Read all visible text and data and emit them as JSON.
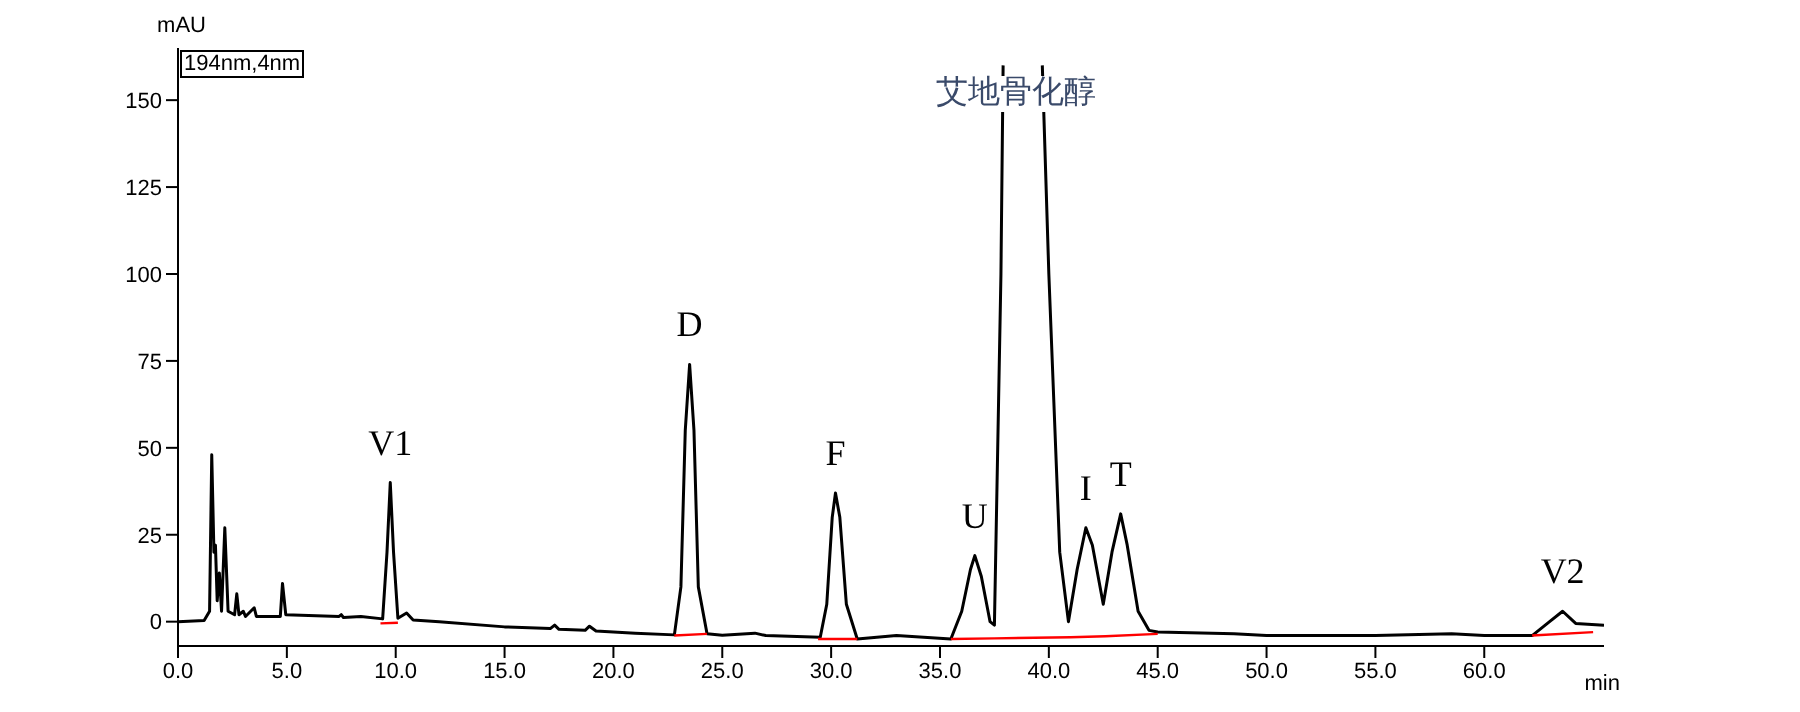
{
  "chart_data": {
    "type": "line",
    "xlabel": "min",
    "ylabel": "mAU",
    "xlim": [
      0,
      65.5
    ],
    "ylim": [
      -7,
      165
    ],
    "xticks": [
      {
        "value": 0,
        "label": "0.0"
      },
      {
        "value": 5,
        "label": "5.0"
      },
      {
        "value": 10,
        "label": "10.0"
      },
      {
        "value": 15,
        "label": "15.0"
      },
      {
        "value": 20,
        "label": "20.0"
      },
      {
        "value": 25,
        "label": "25.0"
      },
      {
        "value": 30,
        "label": "30.0"
      },
      {
        "value": 35,
        "label": "35.0"
      },
      {
        "value": 40,
        "label": "40.0"
      },
      {
        "value": 45,
        "label": "45.0"
      },
      {
        "value": 50,
        "label": "50.0"
      },
      {
        "value": 55,
        "label": "55.0"
      },
      {
        "value": 60,
        "label": "60.0"
      }
    ],
    "yticks": [
      0,
      25,
      50,
      75,
      100,
      125,
      150
    ],
    "marker": "none",
    "line_style": "solid",
    "series": [
      {
        "color": "#000000",
        "x": [
          0,
          1.2,
          1.45,
          1.55,
          1.65,
          1.72,
          1.8,
          1.9,
          2.0,
          2.15,
          2.3,
          2.6,
          2.7,
          2.8,
          3.0,
          3.1,
          3.5,
          3.6,
          4.7,
          4.8,
          4.95,
          7.4,
          7.5,
          7.6,
          8.4,
          9.4,
          9.6,
          9.75,
          9.9,
          10.1,
          10.5,
          10.8,
          12,
          15,
          17.1,
          17.3,
          17.5,
          18.7,
          18.9,
          19.2,
          21,
          22.8,
          23.1,
          23.3,
          23.5,
          23.7,
          23.9,
          24.3,
          25,
          26.5,
          27,
          29.5,
          29.8,
          30.05,
          30.2,
          30.4,
          30.7,
          31.2,
          33,
          35.5,
          36.0,
          36.4,
          36.6,
          36.9,
          37.3,
          37.5,
          37.8,
          37.9,
          38.8,
          39.7,
          40.0,
          40.5,
          40.9,
          41.3,
          41.7,
          42.0,
          42.5,
          42.9,
          43.3,
          43.6,
          44.1,
          44.6,
          45,
          48.5,
          50,
          55,
          58.5,
          60,
          62.2,
          63,
          63.6,
          64.2,
          65.5
        ],
        "values": [
          0,
          0.3,
          3,
          48,
          20,
          22,
          6,
          14,
          3,
          27,
          3,
          2,
          8,
          2,
          3,
          1.5,
          4,
          1.5,
          1.5,
          11,
          2,
          1.5,
          2,
          1.2,
          1.5,
          0.8,
          20,
          40,
          20,
          1,
          2.5,
          0.5,
          0,
          -1.5,
          -2,
          -1,
          -2.2,
          -2.5,
          -1.3,
          -2.7,
          -3.3,
          -3.8,
          10,
          55,
          74,
          55,
          10,
          -3.5,
          -3.9,
          -3.3,
          -4,
          -4.5,
          5,
          30,
          37,
          30,
          5,
          -5,
          -4,
          -5,
          3,
          15,
          19,
          13,
          0,
          -1,
          100,
          160,
          null,
          160,
          100,
          20,
          0,
          15,
          27,
          22,
          5,
          20,
          31,
          22,
          3,
          -2.5,
          -3,
          -3.5,
          -4,
          -4,
          -3.5,
          -4,
          -4,
          0,
          3,
          -0.5,
          -1
        ]
      },
      {
        "color": "#ff0000",
        "x": [
          9.3,
          10.1,
          10.2,
          22.8,
          24.3,
          24.4,
          29.4,
          31.2,
          31.3,
          35.5,
          37.5,
          41,
          42.6,
          45,
          45.1,
          62.2,
          65
        ],
        "values": [
          -0.5,
          -0.3,
          null,
          -4,
          -3.5,
          null,
          -5,
          -5,
          null,
          -5,
          -4.8,
          -4.5,
          -4.2,
          -3.5,
          null,
          -4,
          -3
        ]
      }
    ],
    "annotations": [
      "194nm,4nm",
      {
        "text": "V1",
        "x": 9.75,
        "y": 40
      },
      {
        "text": "D",
        "x": 23.5,
        "y": 74
      },
      {
        "text": "F",
        "x": 30.2,
        "y": 37
      },
      {
        "text": "U",
        "x": 36.6,
        "y": 19
      },
      "艾地骨化醇",
      {
        "text": "I",
        "x": 41.7,
        "y": 27
      },
      {
        "text": "T",
        "x": 43.3,
        "y": 31
      },
      {
        "text": "V2",
        "x": 63.6,
        "y": 3
      }
    ]
  }
}
